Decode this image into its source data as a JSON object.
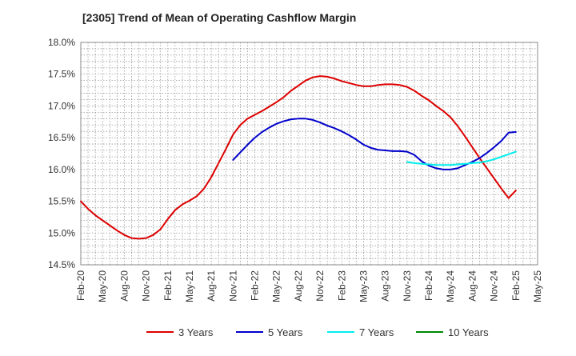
{
  "chart_data": {
    "type": "line",
    "title": "[2305]  Trend of Mean of Operating Cashflow Margin",
    "xlabel": "",
    "ylabel": "",
    "ylim": [
      14.5,
      18.0
    ],
    "y_ticks": [
      "18.0%",
      "17.5%",
      "17.0%",
      "16.5%",
      "16.0%",
      "15.5%",
      "15.0%",
      "14.5%"
    ],
    "y_tick_values": [
      18.0,
      17.5,
      17.0,
      16.5,
      16.0,
      15.5,
      15.0,
      14.5
    ],
    "x_ticks": [
      "Feb-20",
      "May-20",
      "Aug-20",
      "Nov-20",
      "Feb-21",
      "May-21",
      "Aug-21",
      "Nov-21",
      "Feb-22",
      "May-22",
      "Aug-22",
      "Nov-22",
      "Feb-23",
      "May-23",
      "Aug-23",
      "Nov-23",
      "Feb-24",
      "May-24",
      "Aug-24",
      "Nov-24",
      "Feb-25",
      "May-25"
    ],
    "x_start": "2020-02",
    "x_end": "2025-05",
    "grid": true,
    "legend_position": "bottom",
    "series": [
      {
        "name": "3 Years",
        "color": "#dd0000",
        "points": [
          [
            "2020-02",
            15.5
          ],
          [
            "2020-03",
            15.38
          ],
          [
            "2020-04",
            15.28
          ],
          [
            "2020-05",
            15.2
          ],
          [
            "2020-06",
            15.12
          ],
          [
            "2020-07",
            15.04
          ],
          [
            "2020-08",
            14.97
          ],
          [
            "2020-09",
            14.92
          ],
          [
            "2020-10",
            14.91
          ],
          [
            "2020-11",
            14.92
          ],
          [
            "2020-12",
            14.97
          ],
          [
            "2021-01",
            15.06
          ],
          [
            "2021-02",
            15.22
          ],
          [
            "2021-03",
            15.36
          ],
          [
            "2021-04",
            15.45
          ],
          [
            "2021-05",
            15.51
          ],
          [
            "2021-06",
            15.58
          ],
          [
            "2021-07",
            15.7
          ],
          [
            "2021-08",
            15.88
          ],
          [
            "2021-09",
            16.1
          ],
          [
            "2021-10",
            16.32
          ],
          [
            "2021-11",
            16.55
          ],
          [
            "2021-12",
            16.7
          ],
          [
            "2022-01",
            16.8
          ],
          [
            "2022-02",
            16.86
          ],
          [
            "2022-03",
            16.92
          ],
          [
            "2022-04",
            16.99
          ],
          [
            "2022-05",
            17.06
          ],
          [
            "2022-06",
            17.14
          ],
          [
            "2022-07",
            17.24
          ],
          [
            "2022-08",
            17.32
          ],
          [
            "2022-09",
            17.4
          ],
          [
            "2022-10",
            17.45
          ],
          [
            "2022-11",
            17.47
          ],
          [
            "2022-12",
            17.46
          ],
          [
            "2023-01",
            17.43
          ],
          [
            "2023-02",
            17.39
          ],
          [
            "2023-03",
            17.36
          ],
          [
            "2023-04",
            17.33
          ],
          [
            "2023-05",
            17.31
          ],
          [
            "2023-06",
            17.31
          ],
          [
            "2023-07",
            17.33
          ],
          [
            "2023-08",
            17.34
          ],
          [
            "2023-09",
            17.34
          ],
          [
            "2023-10",
            17.33
          ],
          [
            "2023-11",
            17.3
          ],
          [
            "2023-12",
            17.24
          ],
          [
            "2024-01",
            17.16
          ],
          [
            "2024-02",
            17.09
          ],
          [
            "2024-03",
            17.0
          ],
          [
            "2024-04",
            16.92
          ],
          [
            "2024-05",
            16.82
          ],
          [
            "2024-06",
            16.68
          ],
          [
            "2024-07",
            16.52
          ],
          [
            "2024-08",
            16.35
          ],
          [
            "2024-09",
            16.18
          ],
          [
            "2024-10",
            16.02
          ],
          [
            "2024-11",
            15.86
          ],
          [
            "2024-12",
            15.7
          ],
          [
            "2025-01",
            15.55
          ],
          [
            "2025-02",
            15.67
          ]
        ]
      },
      {
        "name": "5 Years",
        "color": "#0000cc",
        "points": [
          [
            "2021-11",
            16.15
          ],
          [
            "2021-12",
            16.27
          ],
          [
            "2022-01",
            16.39
          ],
          [
            "2022-02",
            16.5
          ],
          [
            "2022-03",
            16.59
          ],
          [
            "2022-04",
            16.66
          ],
          [
            "2022-05",
            16.72
          ],
          [
            "2022-06",
            16.76
          ],
          [
            "2022-07",
            16.79
          ],
          [
            "2022-08",
            16.8
          ],
          [
            "2022-09",
            16.8
          ],
          [
            "2022-10",
            16.78
          ],
          [
            "2022-11",
            16.74
          ],
          [
            "2022-12",
            16.69
          ],
          [
            "2023-01",
            16.65
          ],
          [
            "2023-02",
            16.6
          ],
          [
            "2023-03",
            16.54
          ],
          [
            "2023-04",
            16.47
          ],
          [
            "2023-05",
            16.39
          ],
          [
            "2023-06",
            16.34
          ],
          [
            "2023-07",
            16.31
          ],
          [
            "2023-08",
            16.3
          ],
          [
            "2023-09",
            16.29
          ],
          [
            "2023-10",
            16.29
          ],
          [
            "2023-11",
            16.28
          ],
          [
            "2023-12",
            16.23
          ],
          [
            "2024-01",
            16.13
          ],
          [
            "2024-02",
            16.06
          ],
          [
            "2024-03",
            16.02
          ],
          [
            "2024-04",
            16.0
          ],
          [
            "2024-05",
            16.0
          ],
          [
            "2024-06",
            16.02
          ],
          [
            "2024-07",
            16.07
          ],
          [
            "2024-08",
            16.12
          ],
          [
            "2024-09",
            16.18
          ],
          [
            "2024-10",
            16.26
          ],
          [
            "2024-11",
            16.35
          ],
          [
            "2024-12",
            16.45
          ],
          [
            "2025-01",
            16.58
          ],
          [
            "2025-02",
            16.59
          ]
        ]
      },
      {
        "name": "7 Years",
        "color": "#00eeee",
        "points": [
          [
            "2023-11",
            16.12
          ],
          [
            "2023-12",
            16.1
          ],
          [
            "2024-01",
            16.09
          ],
          [
            "2024-02",
            16.08
          ],
          [
            "2024-03",
            16.07
          ],
          [
            "2024-04",
            16.07
          ],
          [
            "2024-05",
            16.07
          ],
          [
            "2024-06",
            16.08
          ],
          [
            "2024-07",
            16.09
          ],
          [
            "2024-08",
            16.1
          ],
          [
            "2024-09",
            16.11
          ],
          [
            "2024-10",
            16.13
          ],
          [
            "2024-11",
            16.16
          ],
          [
            "2024-12",
            16.2
          ],
          [
            "2025-01",
            16.24
          ],
          [
            "2025-02",
            16.28
          ]
        ]
      },
      {
        "name": "10 Years",
        "color": "#008800",
        "points": []
      }
    ]
  }
}
